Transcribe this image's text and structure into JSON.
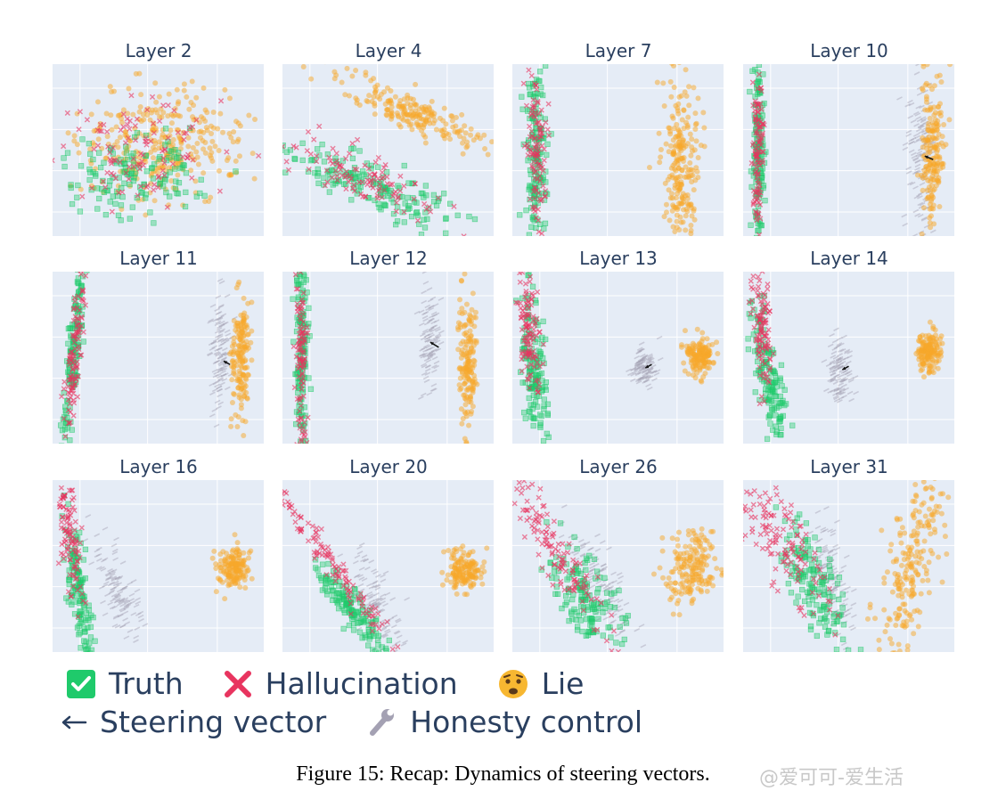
{
  "chart_data": {
    "type": "scatter",
    "panels": [
      {
        "title": "Layer 2",
        "clusters": [
          {
            "cls": "lie",
            "cx": 0.52,
            "cy": 0.46,
            "sx": 0.2,
            "sy": 0.16,
            "rot": -8,
            "n": 320
          },
          {
            "cls": "truth",
            "cx": 0.38,
            "cy": 0.62,
            "sx": 0.2,
            "sy": 0.13,
            "rot": -8,
            "n": 150
          },
          {
            "cls": "hall",
            "cx": 0.4,
            "cy": 0.52,
            "sx": 0.18,
            "sy": 0.14,
            "rot": -8,
            "n": 110
          }
        ]
      },
      {
        "title": "Layer 4",
        "clusters": [
          {
            "cls": "lie",
            "cx": 0.61,
            "cy": 0.28,
            "sx": 0.19,
            "sy": 0.055,
            "rot": 24,
            "n": 200
          },
          {
            "cls": "truth",
            "cx": 0.41,
            "cy": 0.7,
            "sx": 0.23,
            "sy": 0.07,
            "rot": 24,
            "n": 170
          },
          {
            "cls": "hall",
            "cx": 0.38,
            "cy": 0.66,
            "sx": 0.21,
            "sy": 0.06,
            "rot": 24,
            "n": 110
          }
        ]
      },
      {
        "title": "Layer 7",
        "clusters": [
          {
            "cls": "lie",
            "cx": 0.8,
            "cy": 0.56,
            "sx": 0.04,
            "sy": 0.26,
            "rot": 0,
            "n": 230
          },
          {
            "cls": "truth",
            "cx": 0.11,
            "cy": 0.52,
            "sx": 0.025,
            "sy": 0.28,
            "rot": 0,
            "n": 150
          },
          {
            "cls": "hall",
            "cx": 0.11,
            "cy": 0.48,
            "sx": 0.022,
            "sy": 0.24,
            "rot": 0,
            "n": 110
          }
        ]
      },
      {
        "title": "Layer 10",
        "clusters": [
          {
            "cls": "ctrl",
            "cx": 0.84,
            "cy": 0.53,
            "sx": 0.03,
            "sy": 0.22,
            "rot": 0,
            "n": 130
          },
          {
            "cls": "lie",
            "cx": 0.9,
            "cy": 0.52,
            "sx": 0.028,
            "sy": 0.24,
            "rot": 0,
            "n": 180
          },
          {
            "cls": "truth",
            "cx": 0.07,
            "cy": 0.52,
            "sx": 0.014,
            "sy": 0.27,
            "rot": 0,
            "n": 140
          },
          {
            "cls": "hall",
            "cx": 0.07,
            "cy": 0.5,
            "sx": 0.012,
            "sy": 0.24,
            "rot": 0,
            "n": 110
          }
        ],
        "arrow": [
          0.9,
          0.555,
          0.86,
          0.535
        ]
      },
      {
        "title": "Layer 11",
        "clusters": [
          {
            "cls": "ctrl",
            "cx": 0.79,
            "cy": 0.46,
            "sx": 0.022,
            "sy": 0.19,
            "rot": 0,
            "n": 120
          },
          {
            "cls": "lie",
            "cx": 0.89,
            "cy": 0.5,
            "sx": 0.022,
            "sy": 0.19,
            "rot": 0,
            "n": 160
          },
          {
            "cls": "truth",
            "cx": 0.1,
            "cy": 0.48,
            "sx": 0.016,
            "sy": 0.3,
            "rot": 5,
            "n": 140
          },
          {
            "cls": "hall",
            "cx": 0.1,
            "cy": 0.5,
            "sx": 0.014,
            "sy": 0.26,
            "rot": 5,
            "n": 110
          }
        ],
        "arrow": [
          0.84,
          0.54,
          0.81,
          0.52
        ]
      },
      {
        "title": "Layer 12",
        "clusters": [
          {
            "cls": "ctrl",
            "cx": 0.7,
            "cy": 0.38,
            "sx": 0.022,
            "sy": 0.16,
            "rot": 0,
            "n": 110
          },
          {
            "cls": "lie",
            "cx": 0.88,
            "cy": 0.5,
            "sx": 0.024,
            "sy": 0.19,
            "rot": 0,
            "n": 160
          },
          {
            "cls": "truth",
            "cx": 0.09,
            "cy": 0.5,
            "sx": 0.015,
            "sy": 0.3,
            "rot": 0,
            "n": 140
          },
          {
            "cls": "hall",
            "cx": 0.09,
            "cy": 0.48,
            "sx": 0.013,
            "sy": 0.27,
            "rot": 0,
            "n": 110
          }
        ],
        "arrow": [
          0.74,
          0.44,
          0.7,
          0.41
        ]
      },
      {
        "title": "Layer 13",
        "clusters": [
          {
            "cls": "ctrl",
            "cx": 0.62,
            "cy": 0.55,
            "sx": 0.03,
            "sy": 0.055,
            "rot": 0,
            "n": 110
          },
          {
            "cls": "lie",
            "cx": 0.89,
            "cy": 0.49,
            "sx": 0.032,
            "sy": 0.055,
            "rot": 0,
            "n": 150
          },
          {
            "cls": "truth",
            "cx": 0.1,
            "cy": 0.55,
            "sx": 0.028,
            "sy": 0.22,
            "rot": -5,
            "n": 140
          },
          {
            "cls": "hall",
            "cx": 0.08,
            "cy": 0.35,
            "sx": 0.024,
            "sy": 0.16,
            "rot": -5,
            "n": 110
          }
        ],
        "arrow": [
          0.66,
          0.54,
          0.63,
          0.56
        ]
      },
      {
        "title": "Layer 14",
        "clusters": [
          {
            "cls": "ctrl",
            "cx": 0.46,
            "cy": 0.58,
            "sx": 0.03,
            "sy": 0.09,
            "rot": 0,
            "n": 110
          },
          {
            "cls": "lie",
            "cx": 0.88,
            "cy": 0.47,
            "sx": 0.028,
            "sy": 0.06,
            "rot": 0,
            "n": 150
          },
          {
            "cls": "truth",
            "cx": 0.12,
            "cy": 0.62,
            "sx": 0.03,
            "sy": 0.22,
            "rot": -10,
            "n": 140
          },
          {
            "cls": "hall",
            "cx": 0.08,
            "cy": 0.28,
            "sx": 0.024,
            "sy": 0.17,
            "rot": -5,
            "n": 110
          }
        ],
        "arrow": [
          0.5,
          0.55,
          0.47,
          0.57
        ]
      },
      {
        "title": "Layer 16",
        "clusters": [
          {
            "cls": "ctrl",
            "cx": 0.31,
            "cy": 0.64,
            "sx": 0.04,
            "sy": 0.14,
            "rot": -20,
            "n": 120
          },
          {
            "cls": "lie",
            "cx": 0.86,
            "cy": 0.52,
            "sx": 0.04,
            "sy": 0.06,
            "rot": 0,
            "n": 150
          },
          {
            "cls": "truth",
            "cx": 0.13,
            "cy": 0.66,
            "sx": 0.025,
            "sy": 0.25,
            "rot": -8,
            "n": 140
          },
          {
            "cls": "hall",
            "cx": 0.08,
            "cy": 0.3,
            "sx": 0.022,
            "sy": 0.2,
            "rot": -6,
            "n": 110
          }
        ]
      },
      {
        "title": "Layer 20",
        "clusters": [
          {
            "cls": "ctrl",
            "cx": 0.44,
            "cy": 0.7,
            "sx": 0.04,
            "sy": 0.16,
            "rot": -20,
            "n": 120
          },
          {
            "cls": "lie",
            "cx": 0.86,
            "cy": 0.52,
            "sx": 0.045,
            "sy": 0.06,
            "rot": 0,
            "n": 150
          },
          {
            "cls": "truth",
            "cx": 0.34,
            "cy": 0.76,
            "sx": 0.03,
            "sy": 0.17,
            "rot": -38,
            "n": 140
          },
          {
            "cls": "hall",
            "cx": 0.18,
            "cy": 0.4,
            "sx": 0.025,
            "sy": 0.34,
            "rot": -38,
            "n": 130
          }
        ]
      },
      {
        "title": "Layer 26",
        "clusters": [
          {
            "cls": "ctrl",
            "cx": 0.42,
            "cy": 0.62,
            "sx": 0.05,
            "sy": 0.18,
            "rot": -25,
            "n": 120
          },
          {
            "cls": "lie",
            "cx": 0.84,
            "cy": 0.52,
            "sx": 0.06,
            "sy": 0.12,
            "rot": 10,
            "n": 180
          },
          {
            "cls": "truth",
            "cx": 0.35,
            "cy": 0.68,
            "sx": 0.06,
            "sy": 0.18,
            "rot": -25,
            "n": 150
          },
          {
            "cls": "hall",
            "cx": 0.2,
            "cy": 0.4,
            "sx": 0.04,
            "sy": 0.3,
            "rot": -30,
            "n": 130
          }
        ]
      },
      {
        "title": "Layer 31",
        "clusters": [
          {
            "cls": "ctrl",
            "cx": 0.42,
            "cy": 0.58,
            "sx": 0.04,
            "sy": 0.18,
            "rot": -10,
            "n": 120
          },
          {
            "cls": "lie",
            "cx": 0.8,
            "cy": 0.45,
            "sx": 0.06,
            "sy": 0.3,
            "rot": 12,
            "n": 220
          },
          {
            "cls": "truth",
            "cx": 0.34,
            "cy": 0.62,
            "sx": 0.05,
            "sy": 0.2,
            "rot": -20,
            "n": 150
          },
          {
            "cls": "hall",
            "cx": 0.2,
            "cy": 0.38,
            "sx": 0.06,
            "sy": 0.24,
            "rot": -30,
            "n": 130
          }
        ]
      }
    ],
    "legend": [
      {
        "key": "truth",
        "label": "Truth"
      },
      {
        "key": "hall",
        "label": "Hallucination"
      },
      {
        "key": "lie",
        "label": "Lie"
      },
      {
        "key": "steer",
        "label": "Steering vector"
      },
      {
        "key": "ctrl",
        "label": "Honesty control"
      }
    ],
    "colors": {
      "truth": "#1fca6b",
      "hall": "#e8345f",
      "lie": "#f7a72a",
      "ctrl": "#a4a1b3",
      "plot_bg": "#e5ecf6",
      "grid": "#ffffff"
    },
    "legend_icons": {
      "truth": "check-mark-icon",
      "hall": "cross-mark-icon",
      "lie": "worried-face-icon",
      "steer": "left-arrow-icon",
      "ctrl": "wrench-icon"
    }
  },
  "caption": "Figure 15: Recap: Dynamics of steering vectors.",
  "watermark": "@爱可可-爱生活"
}
